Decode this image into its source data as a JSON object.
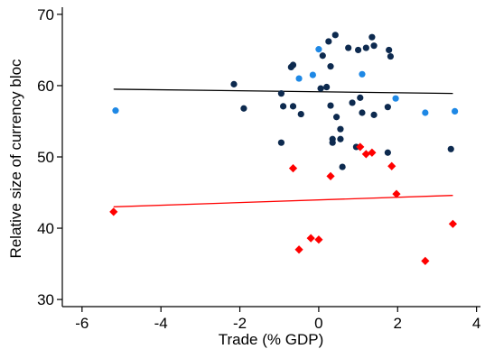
{
  "chart_data": {
    "type": "scatter",
    "xlabel": "Trade (% GDP)",
    "ylabel": "Relative size of currency bloc",
    "xlim": [
      -6.5,
      4.1
    ],
    "ylim": [
      29,
      71
    ],
    "xticks": [
      -6,
      -4,
      -2,
      0,
      2,
      4
    ],
    "yticks": [
      30,
      40,
      50,
      60,
      70
    ],
    "grid": false,
    "legend": "none",
    "series": [
      {
        "marker": "circle",
        "color": "#0d2a4f",
        "points": [
          [
            -2.15,
            60.2
          ],
          [
            -1.9,
            56.8
          ],
          [
            -0.95,
            58.9
          ],
          [
            -0.9,
            57.1
          ],
          [
            -0.95,
            52.0
          ],
          [
            -0.7,
            62.6
          ],
          [
            -0.65,
            62.9
          ],
          [
            -0.65,
            57.1
          ],
          [
            -0.45,
            56.0
          ],
          [
            0.05,
            59.6
          ],
          [
            0.1,
            64.2
          ],
          [
            0.2,
            59.8
          ],
          [
            0.25,
            66.2
          ],
          [
            0.3,
            62.7
          ],
          [
            0.3,
            57.2
          ],
          [
            0.35,
            52.0
          ],
          [
            0.35,
            52.5
          ],
          [
            0.42,
            67.1
          ],
          [
            0.45,
            55.6
          ],
          [
            0.55,
            53.9
          ],
          [
            0.55,
            52.5
          ],
          [
            0.6,
            48.6
          ],
          [
            0.75,
            65.3
          ],
          [
            0.85,
            57.6
          ],
          [
            0.95,
            51.4
          ],
          [
            1.0,
            65.0
          ],
          [
            1.05,
            58.3
          ],
          [
            1.1,
            56.2
          ],
          [
            1.2,
            65.3
          ],
          [
            1.35,
            66.8
          ],
          [
            1.4,
            65.6
          ],
          [
            1.4,
            55.9
          ],
          [
            1.75,
            57.0
          ],
          [
            1.75,
            50.6
          ],
          [
            1.78,
            65.0
          ],
          [
            1.82,
            64.1
          ],
          [
            3.35,
            51.1
          ]
        ]
      },
      {
        "marker": "circle",
        "color": "#1e88e5",
        "points": [
          [
            -5.15,
            56.5
          ],
          [
            -0.5,
            61.0
          ],
          [
            -0.15,
            61.5
          ],
          [
            0.0,
            65.1
          ],
          [
            1.1,
            61.6
          ],
          [
            1.95,
            58.2
          ],
          [
            2.7,
            56.2
          ],
          [
            3.45,
            56.4
          ]
        ]
      },
      {
        "marker": "diamond",
        "color": "#ff0000",
        "points": [
          [
            -5.2,
            42.3
          ],
          [
            -0.65,
            48.4
          ],
          [
            -0.5,
            37.0
          ],
          [
            -0.2,
            38.6
          ],
          [
            0.0,
            38.4
          ],
          [
            0.3,
            47.3
          ],
          [
            1.05,
            51.4
          ],
          [
            1.2,
            50.4
          ],
          [
            1.35,
            50.6
          ],
          [
            1.85,
            48.7
          ],
          [
            1.97,
            44.8
          ],
          [
            2.7,
            35.4
          ],
          [
            3.4,
            40.6
          ]
        ]
      }
    ],
    "fit_lines": [
      {
        "color": "#000000",
        "x": [
          -5.2,
          3.4
        ],
        "y": [
          59.5,
          58.9
        ]
      },
      {
        "color": "#ff0000",
        "x": [
          -5.2,
          3.4
        ],
        "y": [
          43.0,
          44.6
        ]
      }
    ]
  }
}
